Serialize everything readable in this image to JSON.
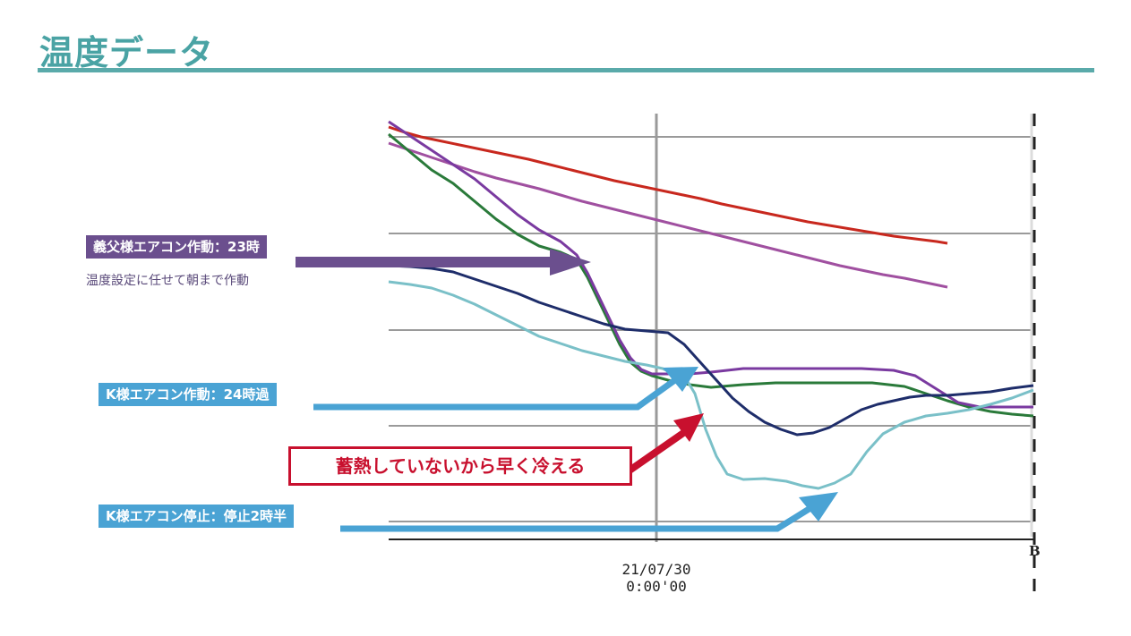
{
  "slide": {
    "title": "温度データ"
  },
  "annotations": {
    "father_label": "義父様エアコン作動：23時",
    "father_note": "温度設定に任せて朝まで作動",
    "k_on_label": "K様エアコン作動：24時過",
    "k_off_label": "K様エアコン停止：停止2時半",
    "heat_note": "蓄熱していないから早く冷える"
  },
  "colors": {
    "accent": "#4aa3a4",
    "purple_callout": "#6b4f8e",
    "blue_callout": "#4aa3d4",
    "red_note": "#c8102e"
  },
  "chart_data": {
    "type": "line",
    "x_tick_date": "21/07/30",
    "x_tick_time": "0:00'00",
    "right_marker": "B",
    "grid": true,
    "series": [
      {
        "color": "#c8281e",
        "values": [
          [
            0,
            142
          ],
          [
            5,
            144
          ],
          [
            15,
            148
          ],
          [
            30,
            153
          ],
          [
            50,
            158
          ],
          [
            70,
            163
          ],
          [
            90,
            168
          ],
          [
            110,
            173
          ],
          [
            130,
            178
          ],
          [
            150,
            184
          ],
          [
            170,
            190
          ],
          [
            190,
            196
          ],
          [
            210,
            202
          ],
          [
            230,
            207
          ],
          [
            250,
            212
          ],
          [
            270,
            217
          ],
          [
            290,
            222
          ],
          [
            310,
            228
          ],
          [
            330,
            233
          ],
          [
            350,
            238
          ],
          [
            370,
            243
          ],
          [
            390,
            248
          ],
          [
            410,
            252
          ],
          [
            430,
            256
          ],
          [
            450,
            260
          ],
          [
            470,
            264
          ],
          [
            490,
            267
          ],
          [
            510,
            270
          ],
          [
            520,
            272
          ]
        ]
      },
      {
        "color": "#a050a0",
        "values": [
          [
            0,
            160
          ],
          [
            20,
            168
          ],
          [
            40,
            176
          ],
          [
            60,
            184
          ],
          [
            80,
            192
          ],
          [
            100,
            199
          ],
          [
            120,
            205
          ],
          [
            140,
            211
          ],
          [
            160,
            218
          ],
          [
            180,
            225
          ],
          [
            200,
            231
          ],
          [
            220,
            237
          ],
          [
            240,
            243
          ],
          [
            260,
            249
          ],
          [
            280,
            255
          ],
          [
            300,
            261
          ],
          [
            320,
            267
          ],
          [
            340,
            273
          ],
          [
            360,
            279
          ],
          [
            380,
            285
          ],
          [
            400,
            291
          ],
          [
            420,
            297
          ],
          [
            440,
            302
          ],
          [
            460,
            307
          ],
          [
            480,
            311
          ],
          [
            500,
            316
          ],
          [
            520,
            321
          ]
        ]
      },
      {
        "color": "#2a7a3a",
        "values": [
          [
            0,
            150
          ],
          [
            20,
            170
          ],
          [
            40,
            190
          ],
          [
            60,
            205
          ],
          [
            80,
            225
          ],
          [
            100,
            245
          ],
          [
            120,
            262
          ],
          [
            140,
            275
          ],
          [
            160,
            282
          ],
          [
            175,
            290
          ],
          [
            185,
            310
          ],
          [
            195,
            335
          ],
          [
            205,
            360
          ],
          [
            215,
            385
          ],
          [
            225,
            405
          ],
          [
            235,
            415
          ],
          [
            245,
            420
          ],
          [
            260,
            425
          ],
          [
            280,
            430
          ],
          [
            300,
            433
          ],
          [
            330,
            430
          ],
          [
            360,
            428
          ],
          [
            400,
            428
          ],
          [
            450,
            428
          ],
          [
            480,
            432
          ],
          [
            500,
            440
          ],
          [
            520,
            448
          ],
          [
            540,
            455
          ],
          [
            560,
            460
          ],
          [
            580,
            463
          ],
          [
            600,
            465
          ]
        ]
      },
      {
        "color": "#7a3aa0",
        "values": [
          [
            0,
            136
          ],
          [
            20,
            152
          ],
          [
            40,
            168
          ],
          [
            60,
            184
          ],
          [
            80,
            200
          ],
          [
            100,
            220
          ],
          [
            120,
            240
          ],
          [
            140,
            257
          ],
          [
            160,
            270
          ],
          [
            175,
            285
          ],
          [
            185,
            305
          ],
          [
            195,
            330
          ],
          [
            205,
            355
          ],
          [
            215,
            380
          ],
          [
            225,
            400
          ],
          [
            235,
            413
          ],
          [
            245,
            418
          ],
          [
            260,
            418
          ],
          [
            280,
            418
          ],
          [
            300,
            416
          ],
          [
            330,
            412
          ],
          [
            360,
            412
          ],
          [
            400,
            412
          ],
          [
            440,
            412
          ],
          [
            470,
            414
          ],
          [
            490,
            420
          ],
          [
            510,
            435
          ],
          [
            530,
            450
          ],
          [
            550,
            455
          ],
          [
            570,
            455
          ],
          [
            600,
            455
          ]
        ]
      },
      {
        "color": "#1e2d6a",
        "values": [
          [
            0,
            297
          ],
          [
            20,
            298
          ],
          [
            40,
            300
          ],
          [
            60,
            304
          ],
          [
            80,
            312
          ],
          [
            100,
            320
          ],
          [
            120,
            328
          ],
          [
            140,
            338
          ],
          [
            160,
            346
          ],
          [
            180,
            354
          ],
          [
            200,
            362
          ],
          [
            220,
            368
          ],
          [
            240,
            370
          ],
          [
            260,
            372
          ],
          [
            275,
            385
          ],
          [
            290,
            405
          ],
          [
            305,
            425
          ],
          [
            320,
            445
          ],
          [
            335,
            460
          ],
          [
            350,
            472
          ],
          [
            365,
            480
          ],
          [
            380,
            486
          ],
          [
            395,
            484
          ],
          [
            410,
            478
          ],
          [
            425,
            468
          ],
          [
            440,
            458
          ],
          [
            455,
            452
          ],
          [
            470,
            448
          ],
          [
            485,
            444
          ],
          [
            500,
            442
          ],
          [
            520,
            442
          ],
          [
            540,
            440
          ],
          [
            560,
            438
          ],
          [
            580,
            434
          ],
          [
            600,
            431
          ]
        ]
      },
      {
        "color": "#7ac0c8",
        "values": [
          [
            0,
            315
          ],
          [
            20,
            318
          ],
          [
            40,
            322
          ],
          [
            60,
            330
          ],
          [
            80,
            340
          ],
          [
            100,
            352
          ],
          [
            120,
            364
          ],
          [
            140,
            376
          ],
          [
            160,
            384
          ],
          [
            180,
            392
          ],
          [
            200,
            398
          ],
          [
            220,
            404
          ],
          [
            240,
            408
          ],
          [
            255,
            412
          ],
          [
            265,
            418
          ],
          [
            275,
            420
          ],
          [
            285,
            440
          ],
          [
            295,
            480
          ],
          [
            305,
            510
          ],
          [
            315,
            530
          ],
          [
            330,
            536
          ],
          [
            350,
            535
          ],
          [
            370,
            538
          ],
          [
            385,
            543
          ],
          [
            400,
            546
          ],
          [
            415,
            540
          ],
          [
            430,
            530
          ],
          [
            445,
            505
          ],
          [
            460,
            485
          ],
          [
            480,
            472
          ],
          [
            500,
            465
          ],
          [
            520,
            462
          ],
          [
            540,
            458
          ],
          [
            560,
            452
          ],
          [
            580,
            445
          ],
          [
            600,
            436
          ]
        ]
      }
    ]
  }
}
